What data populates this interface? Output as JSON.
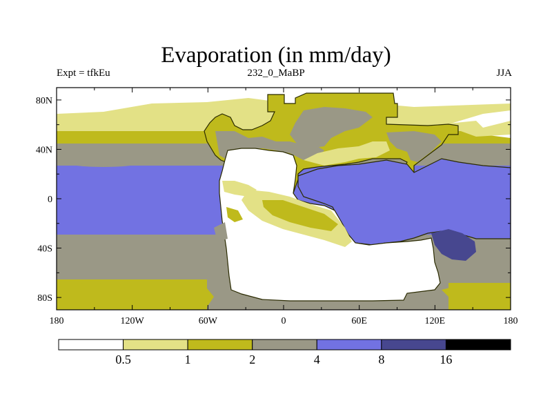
{
  "title": "Evaporation (in mm/day)",
  "subtitle_left": "Expt = tfkEu",
  "subtitle_center": "232_0_MaBP",
  "subtitle_right": "JJA",
  "chart_data": {
    "type": "heatmap",
    "projection": "cylindrical equidistant",
    "x_ticks": [
      "180",
      "120W",
      "60W",
      "0",
      "60E",
      "120E",
      "180"
    ],
    "y_ticks": [
      "80N",
      "40N",
      "0",
      "40S",
      "80S"
    ],
    "x_range": [
      -180,
      180
    ],
    "y_range": [
      -90,
      90
    ],
    "colorbar": {
      "levels": [
        "0.5",
        "1",
        "2",
        "4",
        "8",
        "16"
      ],
      "colors": [
        "#ffffff",
        "#e3e186",
        "#bfba1c",
        "#9a9886",
        "#7272e2",
        "#47478f",
        "#000000"
      ]
    }
  }
}
